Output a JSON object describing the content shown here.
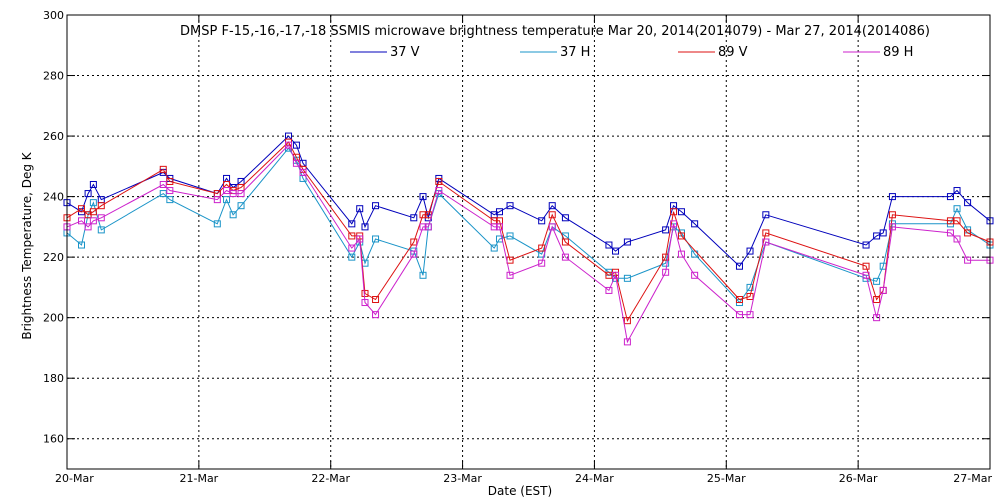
{
  "chart_data": {
    "type": "line",
    "title": "DMSP F-15,-16,-17,-18 SSMIS microwave brightness temperature Mar 20, 2014(2014079) - Mar 27, 2014(2014086)",
    "xlabel": "Date (EST)",
    "ylabel": "Brightness Temperature, Deg K",
    "xlim": [
      0,
      7
    ],
    "ylim": [
      150,
      300
    ],
    "yticks": [
      160,
      180,
      200,
      220,
      240,
      260,
      280,
      300
    ],
    "xticks": [
      0,
      1,
      2,
      3,
      4,
      5,
      6,
      7
    ],
    "xtick_labels": [
      "20-Mar",
      "21-Mar",
      "22-Mar",
      "23-Mar",
      "24-Mar",
      "25-Mar",
      "26-Mar",
      "27-Mar"
    ],
    "grid": true,
    "legend_position": "top-center",
    "series": [
      {
        "name": "37 V",
        "color": "#0000bb",
        "points": [
          [
            0,
            238
          ],
          [
            0.11,
            235
          ],
          [
            0.16,
            241
          ],
          [
            0.2,
            244
          ],
          [
            0.26,
            239
          ],
          [
            0.73,
            248
          ],
          [
            0.78,
            246
          ],
          [
            1.14,
            241
          ],
          [
            1.21,
            246
          ],
          [
            1.26,
            243
          ],
          [
            1.32,
            245
          ],
          [
            1.68,
            260
          ],
          [
            1.74,
            257
          ],
          [
            1.79,
            251
          ],
          [
            2.16,
            231
          ],
          [
            2.22,
            236
          ],
          [
            2.26,
            230
          ],
          [
            2.34,
            237
          ],
          [
            2.63,
            233
          ],
          [
            2.7,
            240
          ],
          [
            2.74,
            233
          ],
          [
            2.82,
            246
          ],
          [
            3.24,
            234
          ],
          [
            3.28,
            235
          ],
          [
            3.36,
            237
          ],
          [
            3.6,
            232
          ],
          [
            3.68,
            237
          ],
          [
            3.78,
            233
          ],
          [
            4.11,
            224
          ],
          [
            4.16,
            222
          ],
          [
            4.25,
            225
          ],
          [
            4.54,
            229
          ],
          [
            4.6,
            237
          ],
          [
            4.66,
            235
          ],
          [
            4.76,
            231
          ],
          [
            5.1,
            217
          ],
          [
            5.18,
            222
          ],
          [
            5.3,
            234
          ],
          [
            6.06,
            224
          ],
          [
            6.14,
            227
          ],
          [
            6.19,
            228
          ],
          [
            6.26,
            240
          ],
          [
            6.7,
            240
          ],
          [
            6.75,
            242
          ],
          [
            6.83,
            238
          ],
          [
            7,
            232
          ]
        ]
      },
      {
        "name": "37 H",
        "color": "#1a94c8",
        "points": [
          [
            0,
            228
          ],
          [
            0.11,
            224
          ],
          [
            0.16,
            234
          ],
          [
            0.2,
            238
          ],
          [
            0.26,
            229
          ],
          [
            0.73,
            241
          ],
          [
            0.78,
            239
          ],
          [
            1.14,
            231
          ],
          [
            1.21,
            239
          ],
          [
            1.26,
            234
          ],
          [
            1.32,
            237
          ],
          [
            1.68,
            256
          ],
          [
            1.74,
            252
          ],
          [
            1.79,
            246
          ],
          [
            2.16,
            220
          ],
          [
            2.22,
            225
          ],
          [
            2.26,
            218
          ],
          [
            2.34,
            226
          ],
          [
            2.63,
            222
          ],
          [
            2.7,
            214
          ],
          [
            2.74,
            230
          ],
          [
            2.82,
            241
          ],
          [
            3.24,
            223
          ],
          [
            3.28,
            226
          ],
          [
            3.36,
            227
          ],
          [
            3.6,
            221
          ],
          [
            3.68,
            230
          ],
          [
            3.78,
            227
          ],
          [
            4.11,
            215
          ],
          [
            4.16,
            213
          ],
          [
            4.25,
            213
          ],
          [
            4.54,
            218
          ],
          [
            4.6,
            230
          ],
          [
            4.66,
            228
          ],
          [
            4.76,
            221
          ],
          [
            5.1,
            205
          ],
          [
            5.18,
            210
          ],
          [
            5.3,
            225
          ],
          [
            6.06,
            213
          ],
          [
            6.14,
            212
          ],
          [
            6.19,
            217
          ],
          [
            6.26,
            231
          ],
          [
            6.7,
            231
          ],
          [
            6.75,
            236
          ],
          [
            6.83,
            229
          ],
          [
            7,
            224
          ]
        ]
      },
      {
        "name": "89 V",
        "color": "#dd1111",
        "points": [
          [
            0,
            233
          ],
          [
            0.11,
            236
          ],
          [
            0.16,
            234
          ],
          [
            0.2,
            235
          ],
          [
            0.26,
            237
          ],
          [
            0.73,
            249
          ],
          [
            0.78,
            245
          ],
          [
            1.14,
            241
          ],
          [
            1.21,
            244
          ],
          [
            1.26,
            242
          ],
          [
            1.32,
            243
          ],
          [
            1.68,
            258
          ],
          [
            1.74,
            253
          ],
          [
            1.79,
            249
          ],
          [
            2.16,
            227
          ],
          [
            2.22,
            227
          ],
          [
            2.26,
            208
          ],
          [
            2.34,
            206
          ],
          [
            2.63,
            225
          ],
          [
            2.7,
            234
          ],
          [
            2.74,
            234
          ],
          [
            2.82,
            245
          ],
          [
            3.24,
            232
          ],
          [
            3.28,
            232
          ],
          [
            3.36,
            219
          ],
          [
            3.6,
            223
          ],
          [
            3.68,
            234
          ],
          [
            3.78,
            225
          ],
          [
            4.11,
            214
          ],
          [
            4.16,
            215
          ],
          [
            4.25,
            199
          ],
          [
            4.54,
            220
          ],
          [
            4.6,
            235
          ],
          [
            4.66,
            227
          ],
          [
            5.1,
            206
          ],
          [
            5.18,
            207
          ],
          [
            5.3,
            228
          ],
          [
            6.06,
            217
          ],
          [
            6.14,
            206
          ],
          [
            6.19,
            209
          ],
          [
            6.26,
            234
          ],
          [
            6.7,
            232
          ],
          [
            6.75,
            232
          ],
          [
            6.83,
            228
          ],
          [
            7,
            225
          ]
        ]
      },
      {
        "name": "89 H",
        "color": "#cc22cc",
        "points": [
          [
            0,
            230
          ],
          [
            0.11,
            232
          ],
          [
            0.16,
            230
          ],
          [
            0.2,
            232
          ],
          [
            0.26,
            233
          ],
          [
            0.73,
            244
          ],
          [
            0.78,
            242
          ],
          [
            1.14,
            239
          ],
          [
            1.21,
            242
          ],
          [
            1.26,
            241
          ],
          [
            1.32,
            241
          ],
          [
            1.68,
            257
          ],
          [
            1.74,
            251
          ],
          [
            1.79,
            248
          ],
          [
            2.16,
            223
          ],
          [
            2.22,
            226
          ],
          [
            2.26,
            205
          ],
          [
            2.34,
            201
          ],
          [
            2.63,
            221
          ],
          [
            2.7,
            230
          ],
          [
            2.74,
            230
          ],
          [
            2.82,
            242
          ],
          [
            3.24,
            230
          ],
          [
            3.28,
            230
          ],
          [
            3.36,
            214
          ],
          [
            3.6,
            218
          ],
          [
            3.68,
            230
          ],
          [
            3.78,
            220
          ],
          [
            4.11,
            209
          ],
          [
            4.16,
            214
          ],
          [
            4.25,
            192
          ],
          [
            4.54,
            215
          ],
          [
            4.6,
            231
          ],
          [
            4.66,
            221
          ],
          [
            4.76,
            214
          ],
          [
            5.1,
            201
          ],
          [
            5.18,
            201
          ],
          [
            5.3,
            225
          ],
          [
            6.06,
            214
          ],
          [
            6.14,
            200
          ],
          [
            6.19,
            209
          ],
          [
            6.26,
            230
          ],
          [
            6.7,
            228
          ],
          [
            6.75,
            226
          ],
          [
            6.83,
            219
          ],
          [
            7,
            219
          ]
        ]
      }
    ]
  }
}
